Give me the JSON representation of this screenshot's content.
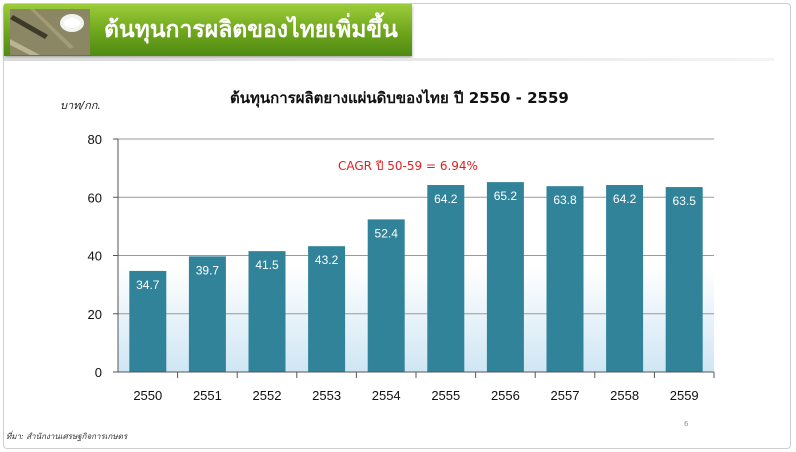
{
  "header": {
    "title": "ต้นทุนการผลิตของไทยเพิ่มขึ้น",
    "thumbnail_icon": "rubber-tapping-photo-icon"
  },
  "unit_label": "บาท/กก.",
  "annotation": "CAGR ปี 50-59 = 6.94%",
  "source_note": "ที่มา:  สำนักงานเศรษฐกิจการเกษตร",
  "page_number": "6",
  "colors": {
    "bar": "#31839a",
    "header": "#6ea51c",
    "annotation": "#e02020"
  },
  "chart_data": {
    "type": "bar",
    "title": "ต้นทุนการผลิตยางแผ่นดิบของไทย ปี 2550 - 2559",
    "xlabel": "",
    "ylabel": "บาท/กก.",
    "categories": [
      "2550",
      "2551",
      "2552",
      "2553",
      "2554",
      "2555",
      "2556",
      "2557",
      "2558",
      "2559"
    ],
    "values": [
      34.7,
      39.7,
      41.5,
      43.2,
      52.4,
      64.2,
      65.2,
      63.8,
      64.2,
      63.5
    ],
    "ylim": [
      0,
      80
    ],
    "yticks": [
      0,
      20,
      40,
      60,
      80
    ],
    "grid": true,
    "legend": "none"
  }
}
